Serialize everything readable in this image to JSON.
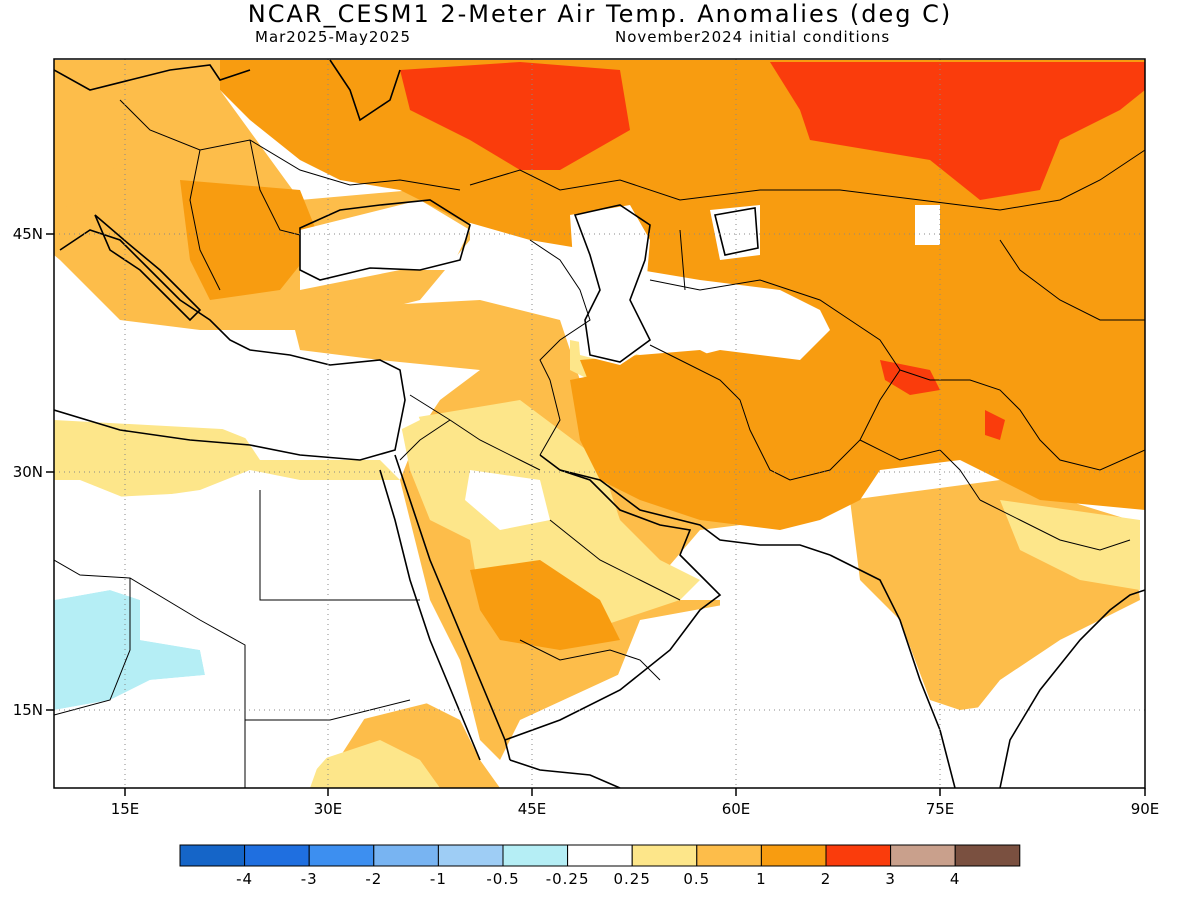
{
  "header": {
    "title": "NCAR_CESM1 2-Meter Air Temp. Anomalies (deg C)",
    "period": "Mar2025-May2025",
    "init": "November2024 initial conditions"
  },
  "axes": {
    "lon_labels": [
      "15E",
      "30E",
      "45E",
      "60E",
      "75E",
      "90E"
    ],
    "lat_labels": [
      "45N",
      "30N",
      "15N"
    ],
    "lon_range": [
      10,
      90
    ],
    "lat_range": [
      10,
      56
    ]
  },
  "colorbar": {
    "labels": [
      "-4",
      "-3",
      "-2",
      "-1",
      "-0.5",
      "-0.25",
      "0.25",
      "0.5",
      "1",
      "2",
      "3",
      "4"
    ],
    "colors": [
      "#1565c8",
      "#1f6fe0",
      "#3d8ff0",
      "#78b4f2",
      "#9ecdf5",
      "#b5eef5",
      "#ffffff",
      "#fde68a",
      "#fdbd4a",
      "#f89c10",
      "#fa3c0c",
      "#c9a08c",
      "#7a5040"
    ]
  },
  "legend_colors": {
    "anom_0_25_to_0_5": "#fde68a",
    "anom_0_5_to_1": "#fdbd4a",
    "anom_1_to_2": "#f89c10",
    "anom_2_to_3": "#fa3c0c",
    "anom_neg_0_5_to_neg_0_25": "#b5eef5"
  }
}
